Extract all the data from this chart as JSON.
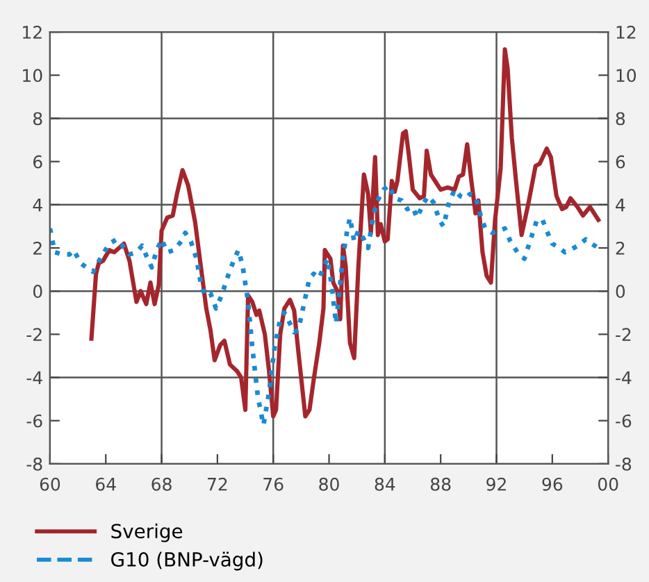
{
  "chart_data": {
    "type": "line",
    "xlim": [
      1960,
      2000
    ],
    "xticks": [
      {
        "value": 1960,
        "label": "60"
      },
      {
        "value": 1964,
        "label": "64"
      },
      {
        "value": 1968,
        "label": "68"
      },
      {
        "value": 1972,
        "label": "72"
      },
      {
        "value": 1976,
        "label": "76"
      },
      {
        "value": 1980,
        "label": "80"
      },
      {
        "value": 1984,
        "label": "84"
      },
      {
        "value": 1988,
        "label": "88"
      },
      {
        "value": 1992,
        "label": "92"
      },
      {
        "value": 1996,
        "label": "96"
      },
      {
        "value": 2000,
        "label": "00"
      }
    ],
    "ylim": [
      -8,
      12
    ],
    "yticks": [
      -8,
      -6,
      -4,
      -2,
      0,
      2,
      4,
      6,
      8,
      10,
      12
    ],
    "y2lim": [
      -8,
      12
    ],
    "y2ticks": [
      -8,
      -6,
      -4,
      -2,
      0,
      2,
      4,
      6,
      8,
      10,
      12
    ],
    "legend": "bottom",
    "grid": false,
    "ref_lines": [
      {
        "axis": "x",
        "value": 1968,
        "color": "#555555"
      },
      {
        "axis": "x",
        "value": 1976,
        "color": "#555555"
      },
      {
        "axis": "x",
        "value": 1984,
        "color": "#555555"
      },
      {
        "axis": "x",
        "value": 1992,
        "color": "#555555"
      },
      {
        "axis": "y",
        "value": 8,
        "color": "#555555"
      },
      {
        "axis": "y",
        "value": 4,
        "color": "#555555"
      },
      {
        "axis": "y",
        "value": 0,
        "color": "#555555"
      },
      {
        "axis": "y",
        "value": -4,
        "color": "#555555"
      }
    ],
    "series": [
      {
        "name": "Sverige",
        "color": "#a4262c",
        "line_style": "solid",
        "x": [
          1962.97,
          1963.3,
          1963.5,
          1963.8,
          1964.25,
          1964.6,
          1964.95,
          1965.3,
          1965.7,
          1966.2,
          1966.5,
          1966.9,
          1967.2,
          1967.5,
          1967.8,
          1968.0,
          1968.4,
          1968.8,
          1969.1,
          1969.5,
          1969.9,
          1970.4,
          1970.8,
          1971.2,
          1971.5,
          1971.8,
          1972.2,
          1972.5,
          1972.9,
          1973.4,
          1973.7,
          1974.0,
          1974.2,
          1974.5,
          1974.8,
          1975.0,
          1975.4,
          1975.7,
          1976.0,
          1976.2,
          1976.5,
          1976.8,
          1977.2,
          1977.5,
          1977.8,
          1978.3,
          1978.6,
          1978.9,
          1979.3,
          1979.6,
          1979.7,
          1980.1,
          1980.3,
          1980.6,
          1980.8,
          1981.0,
          1981.2,
          1981.5,
          1981.8,
          1982.1,
          1982.5,
          1982.8,
          1983.0,
          1983.3,
          1983.5,
          1983.7,
          1984.0,
          1984.2,
          1984.5,
          1984.7,
          1984.9,
          1985.3,
          1985.5,
          1985.7,
          1986.0,
          1986.5,
          1986.8,
          1987.0,
          1987.3,
          1987.7,
          1988.0,
          1988.5,
          1989.0,
          1989.3,
          1989.6,
          1989.9,
          1990.2,
          1990.5,
          1990.7,
          1991.0,
          1991.3,
          1991.6,
          1991.9,
          1992.3,
          1992.6,
          1992.8,
          1993.1,
          1993.4,
          1993.8,
          1994.3,
          1994.8,
          1995.1,
          1995.6,
          1995.9,
          1996.3,
          1996.7,
          1997.0,
          1997.3,
          1997.8,
          1998.2,
          1998.7,
          1999.3
        ],
        "values": [
          -2.2,
          0.8,
          1.3,
          1.4,
          1.9,
          1.8,
          2.0,
          2.2,
          1.4,
          -0.5,
          0.0,
          -0.6,
          0.4,
          -0.6,
          0.3,
          2.8,
          3.4,
          3.5,
          4.5,
          5.6,
          4.9,
          3.2,
          1.2,
          -0.8,
          -1.8,
          -3.2,
          -2.5,
          -2.3,
          -3.4,
          -3.7,
          -4.0,
          -5.5,
          -0.2,
          -0.5,
          -1.1,
          -0.9,
          -2.0,
          -3.7,
          -5.8,
          -5.5,
          -2.0,
          -0.8,
          -0.4,
          -0.9,
          -2.8,
          -5.8,
          -5.5,
          -4.1,
          -2.4,
          -0.8,
          1.9,
          1.5,
          0.4,
          0.0,
          -1.3,
          2.1,
          1.1,
          -2.4,
          -3.1,
          1.1,
          5.4,
          4.5,
          2.7,
          6.2,
          2.6,
          3.1,
          2.3,
          2.4,
          5.1,
          4.6,
          5.1,
          7.3,
          7.4,
          6.4,
          4.7,
          4.3,
          4.4,
          6.5,
          5.4,
          5.0,
          4.7,
          4.8,
          4.7,
          5.3,
          5.4,
          6.8,
          5.1,
          3.6,
          4.2,
          1.8,
          0.7,
          0.4,
          3.3,
          5.7,
          11.2,
          10.3,
          7.1,
          5.1,
          2.6,
          4.1,
          5.8,
          5.9,
          6.6,
          6.2,
          4.4,
          3.8,
          3.9,
          4.3,
          3.9,
          3.5,
          3.9,
          3.3
        ]
      },
      {
        "name": "G10 (BNP-vägd)",
        "color": "#1a8ad4",
        "line_style": "dotted",
        "x": [
          1960.0,
          1960.35,
          1960.9,
          1961.4,
          1961.7,
          1962.2,
          1962.8,
          1963.1,
          1963.6,
          1964.25,
          1964.8,
          1965.2,
          1965.7,
          1966.2,
          1966.6,
          1967.0,
          1967.3,
          1967.6,
          1968.0,
          1968.4,
          1968.9,
          1969.4,
          1969.7,
          1970.1,
          1970.5,
          1970.8,
          1971.1,
          1971.5,
          1971.9,
          1972.3,
          1972.7,
          1973.1,
          1973.5,
          1973.8,
          1974.2,
          1974.5,
          1974.9,
          1975.3,
          1975.7,
          1976.1,
          1976.5,
          1976.8,
          1977.2,
          1977.5,
          1977.8,
          1978.1,
          1978.6,
          1978.9,
          1979.3,
          1979.6,
          1979.9,
          1980.2,
          1980.5,
          1981.0,
          1981.3,
          1981.5,
          1981.8,
          1982.1,
          1982.5,
          1982.8,
          1983.1,
          1983.4,
          1983.9,
          1984.3,
          1984.7,
          1985.2,
          1985.6,
          1986.0,
          1986.3,
          1986.8,
          1987.1,
          1987.5,
          1987.9,
          1988.2,
          1988.6,
          1989.0,
          1989.4,
          1989.8,
          1990.1,
          1990.5,
          1990.9,
          1991.2,
          1991.7,
          1992.2,
          1992.6,
          1993.0,
          1993.5,
          1994.0,
          1994.4,
          1994.9,
          1995.3,
          1995.6,
          1996.0,
          1996.5,
          1996.9,
          1997.3,
          1997.8,
          1998.4,
          1998.8,
          1999.3
        ],
        "values": [
          2.9,
          1.8,
          1.7,
          1.7,
          1.9,
          1.3,
          1.0,
          0.9,
          1.5,
          2.2,
          2.4,
          2.1,
          1.7,
          1.8,
          2.1,
          1.5,
          1.1,
          1.8,
          2.4,
          1.8,
          1.9,
          2.3,
          2.7,
          2.3,
          1.5,
          0.4,
          -0.2,
          -0.1,
          -0.8,
          -0.2,
          0.6,
          1.3,
          1.9,
          1.2,
          -0.5,
          -2.6,
          -4.9,
          -6.2,
          -4.7,
          -2.6,
          -1.3,
          -1.0,
          -1.5,
          -1.9,
          -1.8,
          -0.9,
          0.6,
          0.8,
          0.6,
          1.1,
          1.5,
          0.2,
          -1.5,
          1.6,
          2.8,
          3.4,
          2.3,
          2.8,
          2.4,
          2.0,
          3.2,
          4.1,
          4.7,
          4.9,
          4.3,
          4.2,
          3.8,
          3.9,
          3.4,
          4.1,
          4.4,
          4.1,
          3.3,
          3.0,
          4.1,
          4.7,
          4.4,
          4.3,
          4.5,
          4.4,
          3.4,
          2.9,
          2.7,
          2.8,
          2.9,
          2.3,
          1.8,
          1.5,
          2.3,
          3.3,
          3.3,
          2.8,
          2.2,
          2.0,
          1.8,
          1.9,
          2.1,
          2.4,
          2.2,
          2.0
        ]
      }
    ]
  }
}
